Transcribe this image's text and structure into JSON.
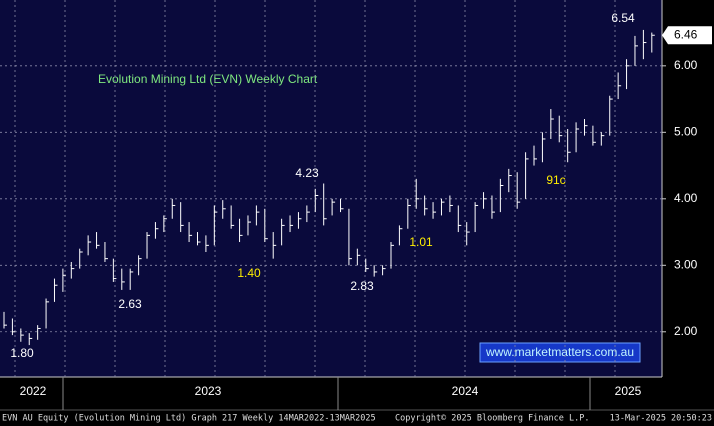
{
  "chart_data": {
    "type": "ohlc",
    "title": "Evolution Mining Ltd (EVN) Weekly Chart",
    "footer": {
      "left": "EVN AU Equity (Evolution Mining Ltd) Graph 217  Weekly 14MAR2022-13MAR2025",
      "center": "Copyright© 2025 Bloomberg Finance L.P.",
      "right": "13-Mar-2025 20:50:23"
    },
    "watermark": "www.marketmatters.com.au",
    "x_labels": [
      "2022",
      "2023",
      "2024",
      "2025"
    ],
    "annotations": [
      {
        "text": "1.80",
        "color": "#ffffff"
      },
      {
        "text": "2.63",
        "color": "#ffffff"
      },
      {
        "text": "4.23",
        "color": "#ffffff"
      },
      {
        "text": "2.83",
        "color": "#ffffff"
      },
      {
        "text": "6.54",
        "color": "#ffffff"
      },
      {
        "text": "1.40",
        "color": "#ffee00"
      },
      {
        "text": "1.01",
        "color": "#ffee00"
      },
      {
        "text": "91c",
        "color": "#ffee00"
      }
    ],
    "last_price": {
      "value": 6.46,
      "label": "6.46"
    },
    "ylim": [
      1.32,
      6.99
    ],
    "yticks": [
      {
        "value": 2,
        "label": "2.00"
      },
      {
        "value": 3,
        "label": "3.00"
      },
      {
        "value": 4,
        "label": "4.00"
      },
      {
        "value": 5,
        "label": "5.00"
      },
      {
        "value": 6,
        "label": "6.00"
      }
    ],
    "grid": true,
    "color": "#ffffff",
    "high": [
      2.3,
      2.2,
      2.05,
      1.98,
      2.1,
      2.5,
      2.8,
      2.95,
      3.05,
      3.25,
      3.45,
      3.5,
      3.35,
      3.1,
      2.95,
      2.95,
      3.15,
      3.5,
      3.65,
      3.75,
      4.0,
      3.95,
      3.65,
      3.5,
      3.45,
      3.9,
      3.98,
      3.9,
      3.7,
      3.75,
      3.9,
      3.85,
      3.5,
      3.7,
      3.75,
      3.8,
      3.9,
      4.15,
      4.23,
      4.0,
      4.0,
      3.85,
      3.25,
      3.1,
      3.0,
      3.0,
      3.35,
      3.6,
      4.0,
      4.3,
      4.05,
      3.95,
      4.0,
      4.05,
      3.9,
      3.65,
      3.95,
      4.1,
      4.05,
      4.3,
      4.45,
      4.4,
      4.7,
      4.8,
      5.0,
      5.35,
      5.25,
      5.05,
      5.15,
      5.2,
      5.1,
      5.0,
      5.55,
      5.9,
      6.1,
      6.45,
      6.54,
      6.5
    ],
    "low": [
      2.05,
      1.95,
      1.85,
      1.8,
      1.88,
      2.05,
      2.45,
      2.6,
      2.8,
      2.95,
      3.15,
      3.25,
      3.05,
      2.75,
      2.63,
      2.63,
      2.85,
      3.1,
      3.4,
      3.5,
      3.7,
      3.5,
      3.35,
      3.3,
      3.2,
      3.3,
      3.7,
      3.55,
      3.35,
      3.45,
      3.6,
      3.35,
      3.1,
      3.3,
      3.5,
      3.55,
      3.65,
      3.8,
      3.6,
      3.75,
      3.8,
      3.0,
      3.0,
      2.9,
      2.83,
      2.85,
      2.95,
      3.3,
      3.55,
      3.85,
      3.75,
      3.7,
      3.75,
      3.8,
      3.5,
      3.3,
      3.5,
      3.85,
      3.7,
      3.8,
      4.1,
      3.85,
      4.0,
      4.5,
      4.55,
      4.9,
      4.85,
      4.55,
      4.7,
      4.95,
      4.8,
      4.8,
      4.95,
      5.5,
      5.65,
      6.0,
      6.1,
      6.2
    ],
    "close": [
      2.1,
      2.0,
      1.95,
      1.9,
      2.05,
      2.45,
      2.7,
      2.85,
      2.95,
      3.2,
      3.35,
      3.3,
      3.1,
      2.8,
      2.75,
      2.9,
      3.1,
      3.45,
      3.55,
      3.7,
      3.9,
      3.6,
      3.45,
      3.35,
      3.3,
      3.8,
      3.85,
      3.6,
      3.45,
      3.65,
      3.8,
      3.4,
      3.3,
      3.6,
      3.6,
      3.7,
      3.8,
      4.05,
      3.7,
      3.95,
      3.85,
      3.1,
      3.15,
      2.95,
      2.9,
      2.95,
      3.3,
      3.55,
      3.9,
      4.0,
      3.85,
      3.8,
      3.95,
      3.9,
      3.6,
      3.5,
      3.9,
      4.0,
      3.8,
      4.2,
      4.35,
      3.95,
      4.6,
      4.6,
      4.9,
      5.2,
      4.95,
      4.7,
      5.05,
      5.1,
      4.85,
      4.95,
      5.5,
      5.7,
      6.0,
      6.3,
      6.35,
      6.46
    ]
  }
}
